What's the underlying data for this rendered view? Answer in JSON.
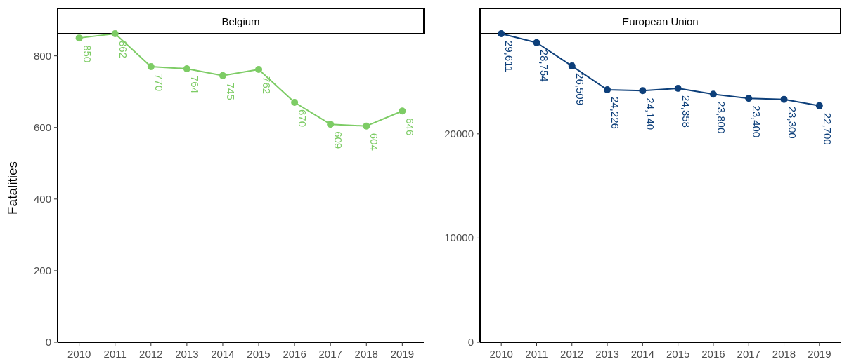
{
  "chart_data": [
    {
      "type": "line",
      "title": "Belgium",
      "ylabel": "Fatalities",
      "x": [
        2010,
        2011,
        2012,
        2013,
        2014,
        2015,
        2016,
        2017,
        2018,
        2019
      ],
      "xlim": [
        2009.4,
        2019.6
      ],
      "xticks": [
        2010,
        2011,
        2012,
        2013,
        2014,
        2015,
        2016,
        2017,
        2018,
        2019
      ],
      "ylim": [
        0,
        862
      ],
      "yticks": [
        0,
        200,
        400,
        600,
        800
      ],
      "marker": "circle",
      "data_labels": true,
      "grid": false,
      "series": [
        {
          "color": "#7dcc65",
          "values": [
            850,
            862,
            770,
            764,
            745,
            762,
            670,
            609,
            604,
            646
          ]
        }
      ]
    },
    {
      "type": "line",
      "title": "European Union",
      "x": [
        2010,
        2011,
        2012,
        2013,
        2014,
        2015,
        2016,
        2017,
        2018,
        2019
      ],
      "xlim": [
        2009.4,
        2019.6
      ],
      "xticks": [
        2010,
        2011,
        2012,
        2013,
        2014,
        2015,
        2016,
        2017,
        2018,
        2019
      ],
      "ylim": [
        0,
        29611
      ],
      "yticks": [
        0,
        10000,
        20000
      ],
      "marker": "circle",
      "grid": false,
      "series": [
        {
          "color": "#0d3f7a",
          "values": [
            29611,
            28754,
            26509,
            24226,
            24140,
            24358,
            23800,
            23400,
            23300,
            22700
          ],
          "value_labels": [
            "29,611",
            "28,754",
            "26,509",
            "24,226",
            "24,140",
            "24,358",
            "23,800",
            "23,400",
            "23,300",
            "22,700"
          ]
        }
      ]
    }
  ]
}
